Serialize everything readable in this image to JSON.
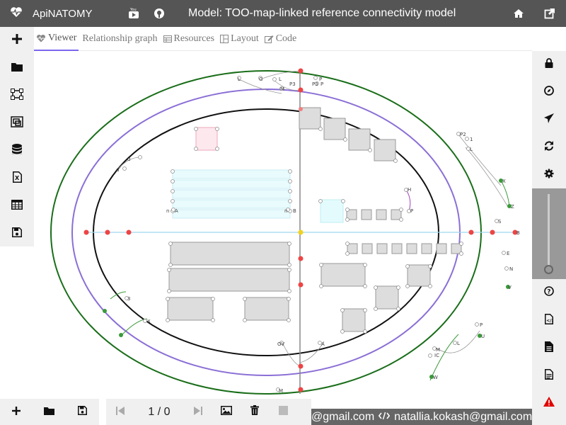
{
  "app": {
    "brand": "ApiNATOMY",
    "model_title": "Model: TOO-map-linked reference connectivity model"
  },
  "tabs": [
    {
      "label": "Viewer",
      "icon": "heartbeat-icon"
    },
    {
      "label": "Relationship graph",
      "icon": ""
    },
    {
      "label": "Resources",
      "icon": "table-icon"
    },
    {
      "label": "Layout",
      "icon": "layout-icon"
    },
    {
      "label": "Code",
      "icon": "edit-icon"
    }
  ],
  "left_toolbar": [
    "plus-icon",
    "folder-icon",
    "vector-square-icon",
    "object-group-icon",
    "database-icon",
    "excel-file-icon",
    "table-icon",
    "save-icon"
  ],
  "right_toolbar": [
    "lock-icon",
    "compass-icon",
    "send-icon",
    "sync-icon",
    "gear-icon",
    "help-icon",
    "code-file-icon",
    "file-icon",
    "file-lines-icon",
    "warning-icon"
  ],
  "colors": {
    "topbar": "#555555",
    "accent": "#7b68ee",
    "outer_ring": "#1a6e1a",
    "node_red": "#ee4444",
    "node_green": "#3a9a3a",
    "warning": "#e00000"
  },
  "player": {
    "counter": "1 / 0"
  },
  "footer": {
    "email_left": "@gmail.com",
    "email_right": "natallia.kokash@gmail.com"
  },
  "graph_labels": {
    "top": [
      "L",
      "G",
      "L",
      "P",
      "P",
      "M",
      "P3",
      "P3"
    ],
    "left": [
      "d",
      "d",
      "n",
      "A",
      "n",
      "B",
      "3",
      "X"
    ],
    "right": [
      "P2",
      "1",
      "L",
      "X",
      "Z",
      "S",
      "B",
      "E",
      "N",
      "V",
      "P",
      "U",
      "L",
      "M",
      "IC",
      "W",
      "H",
      "P"
    ],
    "bottom": [
      "OV",
      "A",
      "M"
    ]
  }
}
